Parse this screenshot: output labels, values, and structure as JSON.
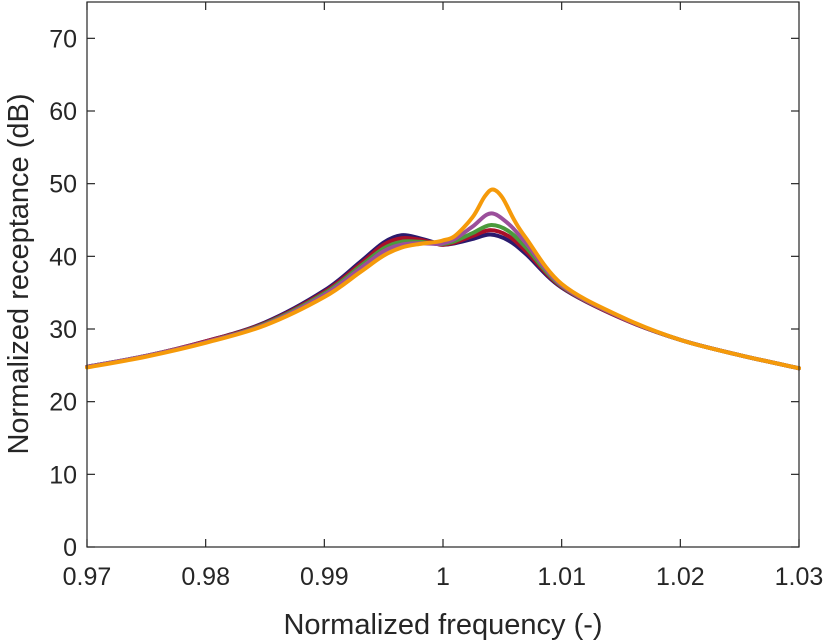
{
  "chart_data": {
    "type": "line",
    "title": "",
    "xlabel": "Normalized frequency (-)",
    "ylabel": "Normalized receptance (dB)",
    "xlim": [
      0.97,
      1.03
    ],
    "ylim": [
      0,
      75
    ],
    "xticks": [
      0.97,
      0.98,
      0.99,
      1.0,
      1.01,
      1.02,
      1.03
    ],
    "xtick_labels": [
      "0.97",
      "0.98",
      "0.99",
      "1",
      "1.01",
      "1.02",
      "1.03"
    ],
    "yticks": [
      0,
      10,
      20,
      30,
      40,
      50,
      60,
      70
    ],
    "ytick_labels": [
      "0",
      "10",
      "20",
      "30",
      "40",
      "50",
      "60",
      "70"
    ],
    "grid": false,
    "legend": "none",
    "series": [
      {
        "color": "#2a1a6e",
        "x": [
          0.97,
          0.975,
          0.98,
          0.985,
          0.99,
          0.993,
          0.995,
          0.9965,
          0.998,
          0.9995,
          1.0,
          1.001,
          1.0025,
          1.004,
          1.0055,
          1.007,
          1.01,
          1.015,
          1.02,
          1.025,
          1.03
        ],
        "y": [
          24.8,
          26.3,
          28.3,
          30.9,
          35.3,
          39.2,
          41.9,
          42.9,
          42.5,
          41.8,
          41.6,
          41.8,
          42.4,
          43.0,
          42.2,
          40.3,
          35.7,
          31.5,
          28.5,
          26.4,
          24.6
        ]
      },
      {
        "color": "#a8102a",
        "x": [
          0.97,
          0.975,
          0.98,
          0.985,
          0.99,
          0.993,
          0.995,
          0.9965,
          0.998,
          0.9995,
          1.0,
          1.001,
          1.0025,
          1.004,
          1.0055,
          1.007,
          1.01,
          1.015,
          1.02,
          1.025,
          1.03
        ],
        "y": [
          24.8,
          26.3,
          28.3,
          30.8,
          35.1,
          38.9,
          41.6,
          42.5,
          42.3,
          41.7,
          41.6,
          41.9,
          42.8,
          43.6,
          42.8,
          40.7,
          35.8,
          31.5,
          28.5,
          26.4,
          24.6
        ]
      },
      {
        "color": "#4a9a3c",
        "x": [
          0.97,
          0.975,
          0.98,
          0.985,
          0.99,
          0.993,
          0.995,
          0.9965,
          0.998,
          0.9995,
          1.0,
          1.001,
          1.0025,
          1.004,
          1.0055,
          1.007,
          1.01,
          1.015,
          1.02,
          1.025,
          1.03
        ],
        "y": [
          24.8,
          26.3,
          28.2,
          30.7,
          34.9,
          38.6,
          41.1,
          42.0,
          42.0,
          41.7,
          41.7,
          42.1,
          43.2,
          44.3,
          43.5,
          41.2,
          35.9,
          31.6,
          28.5,
          26.4,
          24.6
        ]
      },
      {
        "color": "#9b4f9b",
        "x": [
          0.97,
          0.975,
          0.98,
          0.985,
          0.99,
          0.993,
          0.995,
          0.9965,
          0.998,
          0.9995,
          1.0,
          1.001,
          1.0025,
          1.004,
          1.0055,
          1.007,
          1.01,
          1.015,
          1.02,
          1.025,
          1.03
        ],
        "y": [
          24.8,
          26.3,
          28.2,
          30.6,
          34.7,
          38.3,
          40.7,
          41.6,
          41.8,
          41.7,
          41.8,
          42.4,
          44.1,
          45.9,
          44.5,
          41.8,
          36.0,
          31.6,
          28.5,
          26.4,
          24.6
        ]
      },
      {
        "color": "#f59a0a",
        "x": [
          0.97,
          0.975,
          0.98,
          0.985,
          0.99,
          0.993,
          0.995,
          0.9965,
          0.998,
          0.9995,
          1.0,
          1.001,
          1.0025,
          1.0035,
          1.0042,
          1.005,
          1.006,
          1.007,
          1.01,
          1.015,
          1.02,
          1.025,
          1.03
        ],
        "y": [
          24.7,
          26.2,
          28.1,
          30.5,
          34.4,
          37.8,
          40.1,
          41.2,
          41.7,
          42.0,
          42.2,
          42.8,
          45.4,
          48.2,
          49.2,
          48.1,
          45.0,
          42.5,
          36.2,
          31.7,
          28.5,
          26.4,
          24.6
        ]
      }
    ]
  }
}
